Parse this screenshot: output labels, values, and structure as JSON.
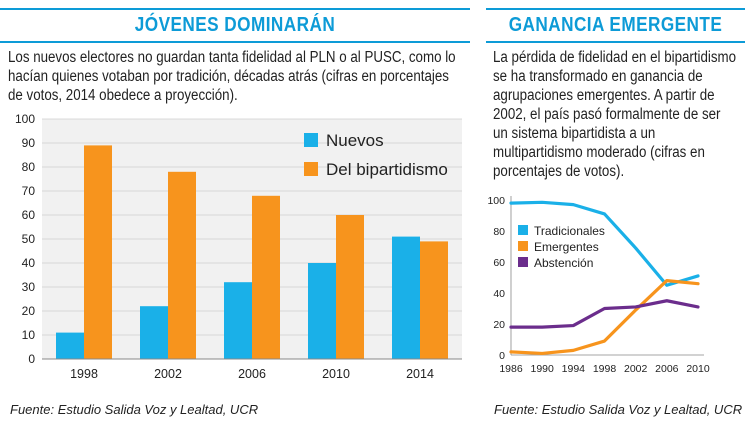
{
  "left": {
    "title": "JÓVENES DOMINARÁN",
    "description": "Los nuevos electores no guardan tanta fidelidad al PLN o al PUSC, como lo hacían quienes votaban por tradición, décadas atrás (cifras en porcentajes de votos, 2014 obedece a proyección).",
    "source": "Fuente: Estudio Salida Voz y Lealtad, UCR"
  },
  "right": {
    "title": "GANANCIA EMERGENTE",
    "description": "La pérdida de fidelidad en el bipartidismo se ha transformado en ganancia de agrupaciones emergentes. A partir de 2002, el país pasó formalmente de ser un sistema bipartidista a un multipartidismo moderado (cifras en porcentajes de votos).",
    "source": "Fuente: Estudio Salida Voz y Lealtad, UCR"
  },
  "colors": {
    "accent": "#0d9bd7",
    "nuevos": "#1ab0e8",
    "bipartidismo": "#f7941d",
    "tradicionales": "#1ab0e8",
    "emergentes": "#f7941d",
    "abstencion": "#6b2d8c",
    "grid": "#cfcfcf",
    "plot_bg": "#f1f1f1"
  },
  "chart_data": [
    {
      "type": "bar",
      "categories": [
        "1998",
        "2002",
        "2006",
        "2010",
        "2014"
      ],
      "series": [
        {
          "name": "Nuevos",
          "values": [
            11,
            22,
            32,
            40,
            51
          ]
        },
        {
          "name": "Del bipartidismo",
          "values": [
            89,
            78,
            68,
            60,
            49
          ]
        }
      ],
      "ylim": [
        0,
        100
      ],
      "yticks": [
        0,
        10,
        20,
        30,
        40,
        50,
        60,
        70,
        80,
        90,
        100
      ],
      "grid": true,
      "legend": "top-right"
    },
    {
      "type": "line",
      "x": [
        1986,
        1990,
        1994,
        1998,
        2002,
        2006,
        2010
      ],
      "xticks": [
        "1986",
        "1990",
        "1994",
        "1998",
        "2002",
        "2006",
        "2010"
      ],
      "series": [
        {
          "name": "Tradicionales",
          "values": [
            98,
            98.5,
            97,
            91,
            69,
            45,
            51
          ]
        },
        {
          "name": "Emergentes",
          "values": [
            2,
            1,
            3,
            9,
            29,
            48,
            46
          ]
        },
        {
          "name": "Abstención",
          "values": [
            18,
            18,
            19,
            30,
            31,
            35,
            31
          ]
        }
      ],
      "ylim": [
        0,
        100
      ],
      "yticks": [
        "0",
        "20",
        "40",
        "60",
        "80",
        "100"
      ],
      "grid": false,
      "legend": "top-left"
    }
  ]
}
